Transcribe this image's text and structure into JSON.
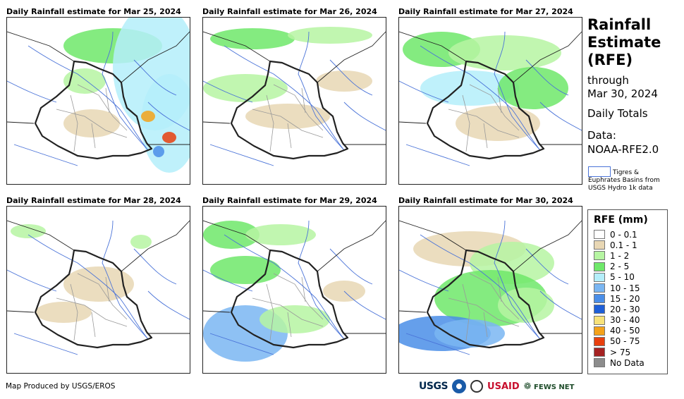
{
  "panels": [
    {
      "title": "Daily Rainfall estimate for Mar 25, 2024"
    },
    {
      "title": "Daily Rainfall estimate for Mar 26, 2024"
    },
    {
      "title": "Daily Rainfall estimate for Mar 27, 2024"
    },
    {
      "title": "Daily Rainfall estimate for Mar 28, 2024"
    },
    {
      "title": "Daily Rainfall estimate for Mar 29, 2024"
    },
    {
      "title": "Daily Rainfall estimate for Mar 30, 2024"
    }
  ],
  "sidebar": {
    "title_line1": "Rainfall",
    "title_line2": "Estimate",
    "title_line3": "(RFE)",
    "through_label": "through",
    "through_date": "Mar 30, 2024",
    "totals_label": "Daily Totals",
    "data_label": "Data:",
    "data_source": "NOAA-RFE2.0",
    "basin_legend_line1": "Tigres &",
    "basin_legend_line2": "Euphrates Basins from",
    "basin_legend_line3": "USGS Hydro 1k data"
  },
  "legend": {
    "title": "RFE (mm)",
    "items": [
      {
        "label": "0 - 0.1",
        "color": "#ffffff"
      },
      {
        "label": "0.1 - 1",
        "color": "#e8d7b4"
      },
      {
        "label": "1 - 2",
        "color": "#b6f5a2"
      },
      {
        "label": "2 - 5",
        "color": "#6fe86a"
      },
      {
        "label": "5 - 10",
        "color": "#b4eefa"
      },
      {
        "label": "10 - 15",
        "color": "#7ab6f2"
      },
      {
        "label": "15 - 20",
        "color": "#4a8ee8"
      },
      {
        "label": "20 - 30",
        "color": "#1e5fd8"
      },
      {
        "label": "30 - 40",
        "color": "#f7e27a"
      },
      {
        "label": "40 - 50",
        "color": "#f4a21a"
      },
      {
        "label": "50 - 75",
        "color": "#e8400e"
      },
      {
        "label": "> 75",
        "color": "#a52222"
      },
      {
        "label": "No Data",
        "color": "#8c8c8c"
      }
    ]
  },
  "footer": {
    "credit": "Map Produced by USGS/EROS",
    "logo_usgs": "USGS",
    "logo_usaid": "USAID",
    "logo_fews": "FEWS NET"
  }
}
